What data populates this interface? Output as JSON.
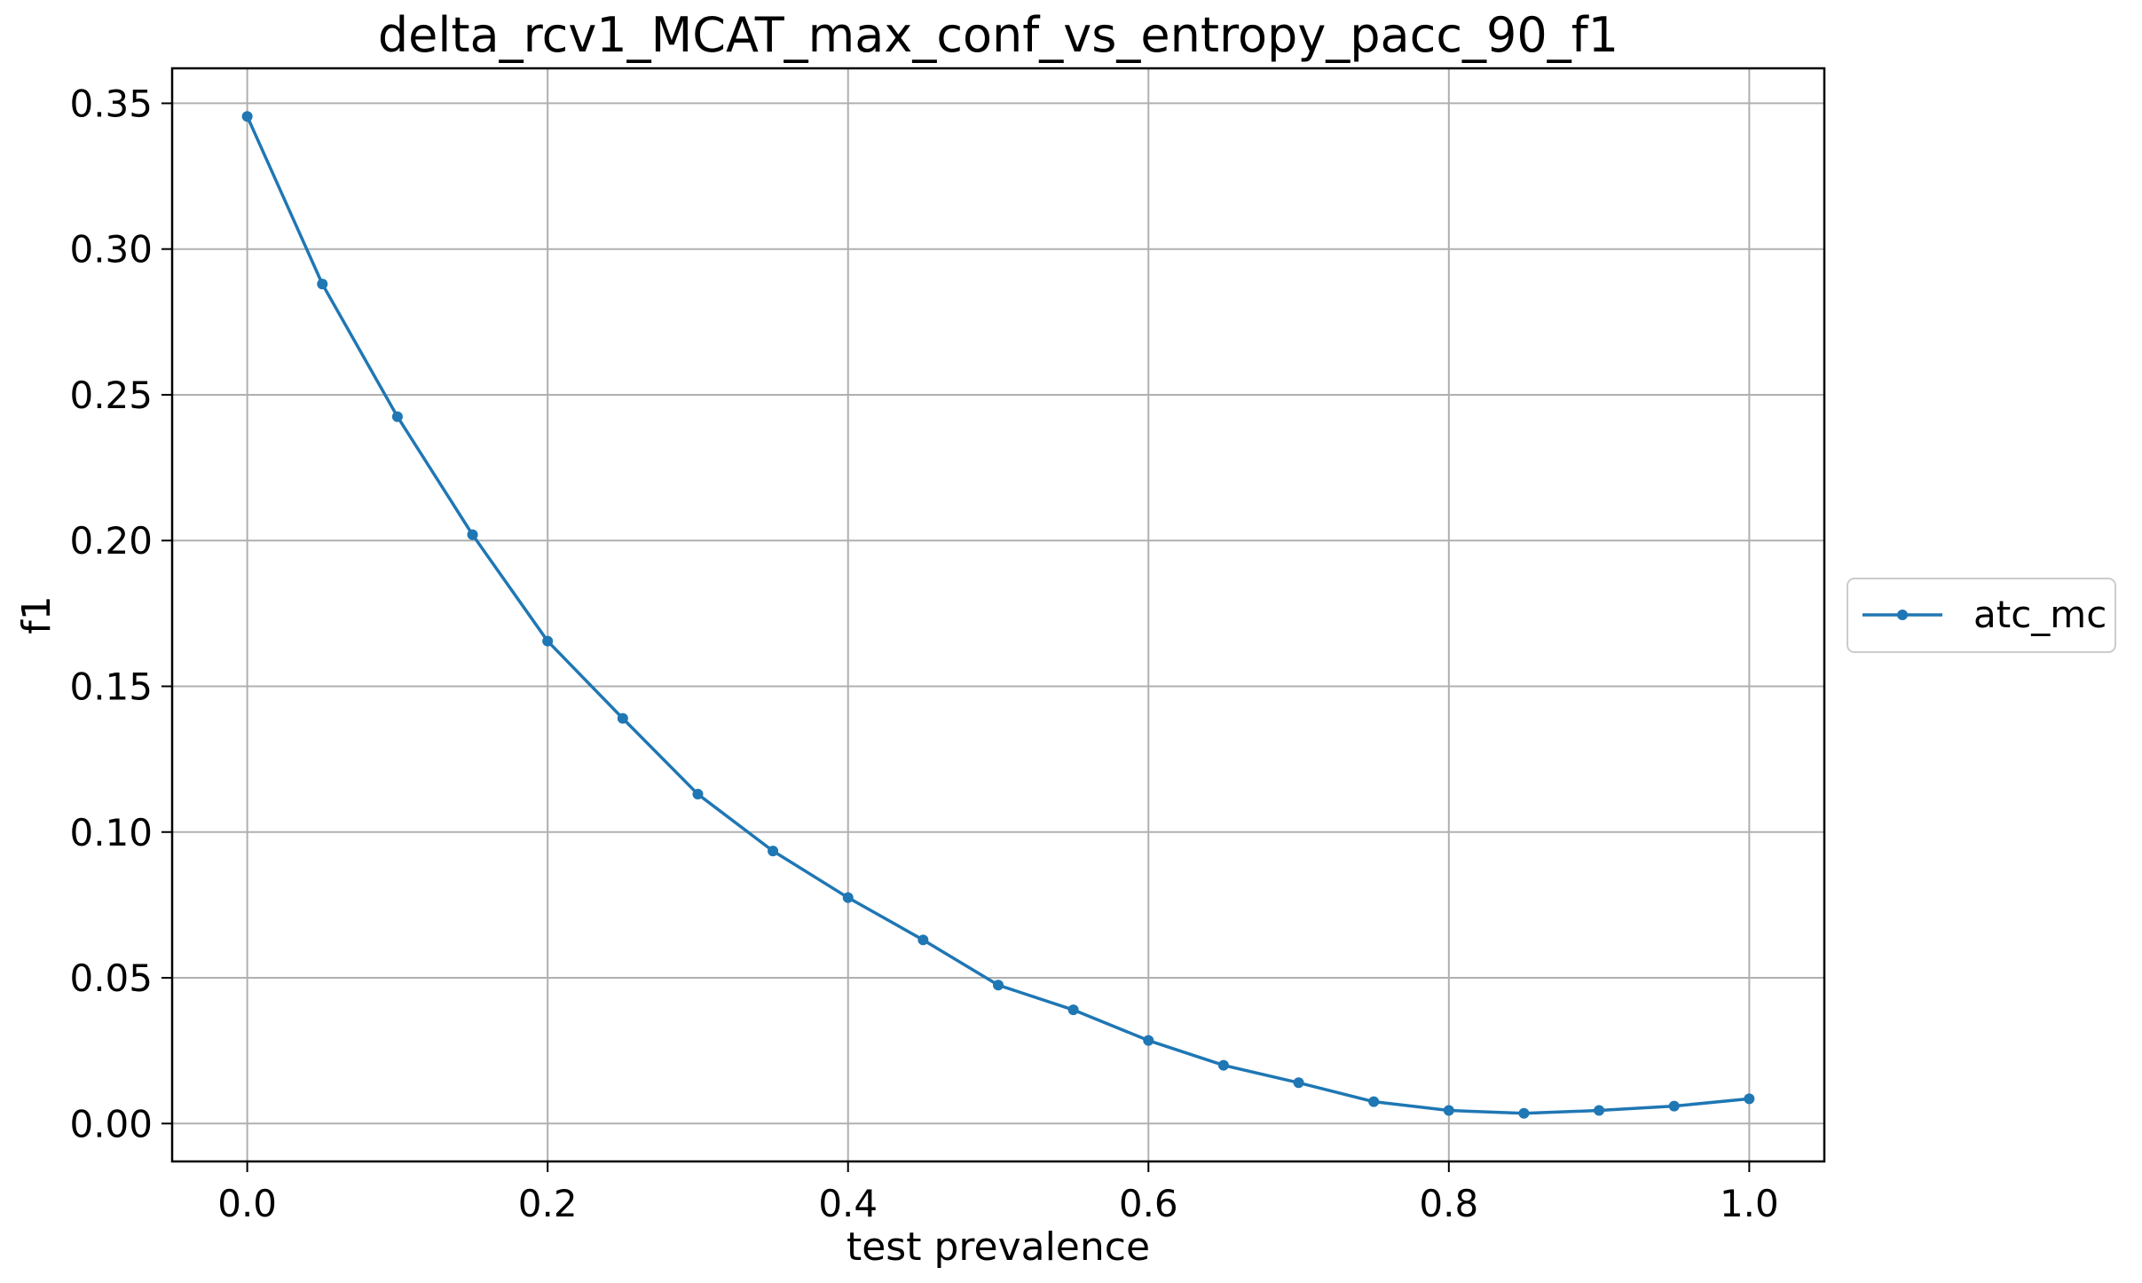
{
  "chart_data": {
    "type": "line",
    "title": "delta_rcv1_MCAT_max_conf_vs_entropy_pacc_90_f1",
    "xlabel": "test prevalence",
    "ylabel": "f1",
    "xlim": [
      -0.05,
      1.05
    ],
    "ylim": [
      -0.013,
      0.362
    ],
    "x_ticks": [
      "0.0",
      "0.2",
      "0.4",
      "0.6",
      "0.8",
      "1.0"
    ],
    "y_ticks": [
      "0.00",
      "0.05",
      "0.10",
      "0.15",
      "0.20",
      "0.25",
      "0.30",
      "0.35"
    ],
    "grid": true,
    "legend_position": "center-right outside",
    "x": [
      0.0,
      0.05,
      0.1,
      0.15,
      0.2,
      0.25,
      0.3,
      0.35,
      0.4,
      0.45,
      0.5,
      0.55,
      0.6,
      0.65,
      0.7,
      0.75,
      0.8,
      0.85,
      0.9,
      0.95,
      1.0
    ],
    "series": [
      {
        "name": "atc_mc",
        "color": "#1f77b4",
        "values": [
          0.3455,
          0.288,
          0.2425,
          0.202,
          0.1655,
          0.139,
          0.113,
          0.0935,
          0.0775,
          0.063,
          0.0475,
          0.039,
          0.0285,
          0.02,
          0.014,
          0.0075,
          0.0045,
          0.0035,
          0.0045,
          0.006,
          0.0085
        ]
      }
    ]
  }
}
